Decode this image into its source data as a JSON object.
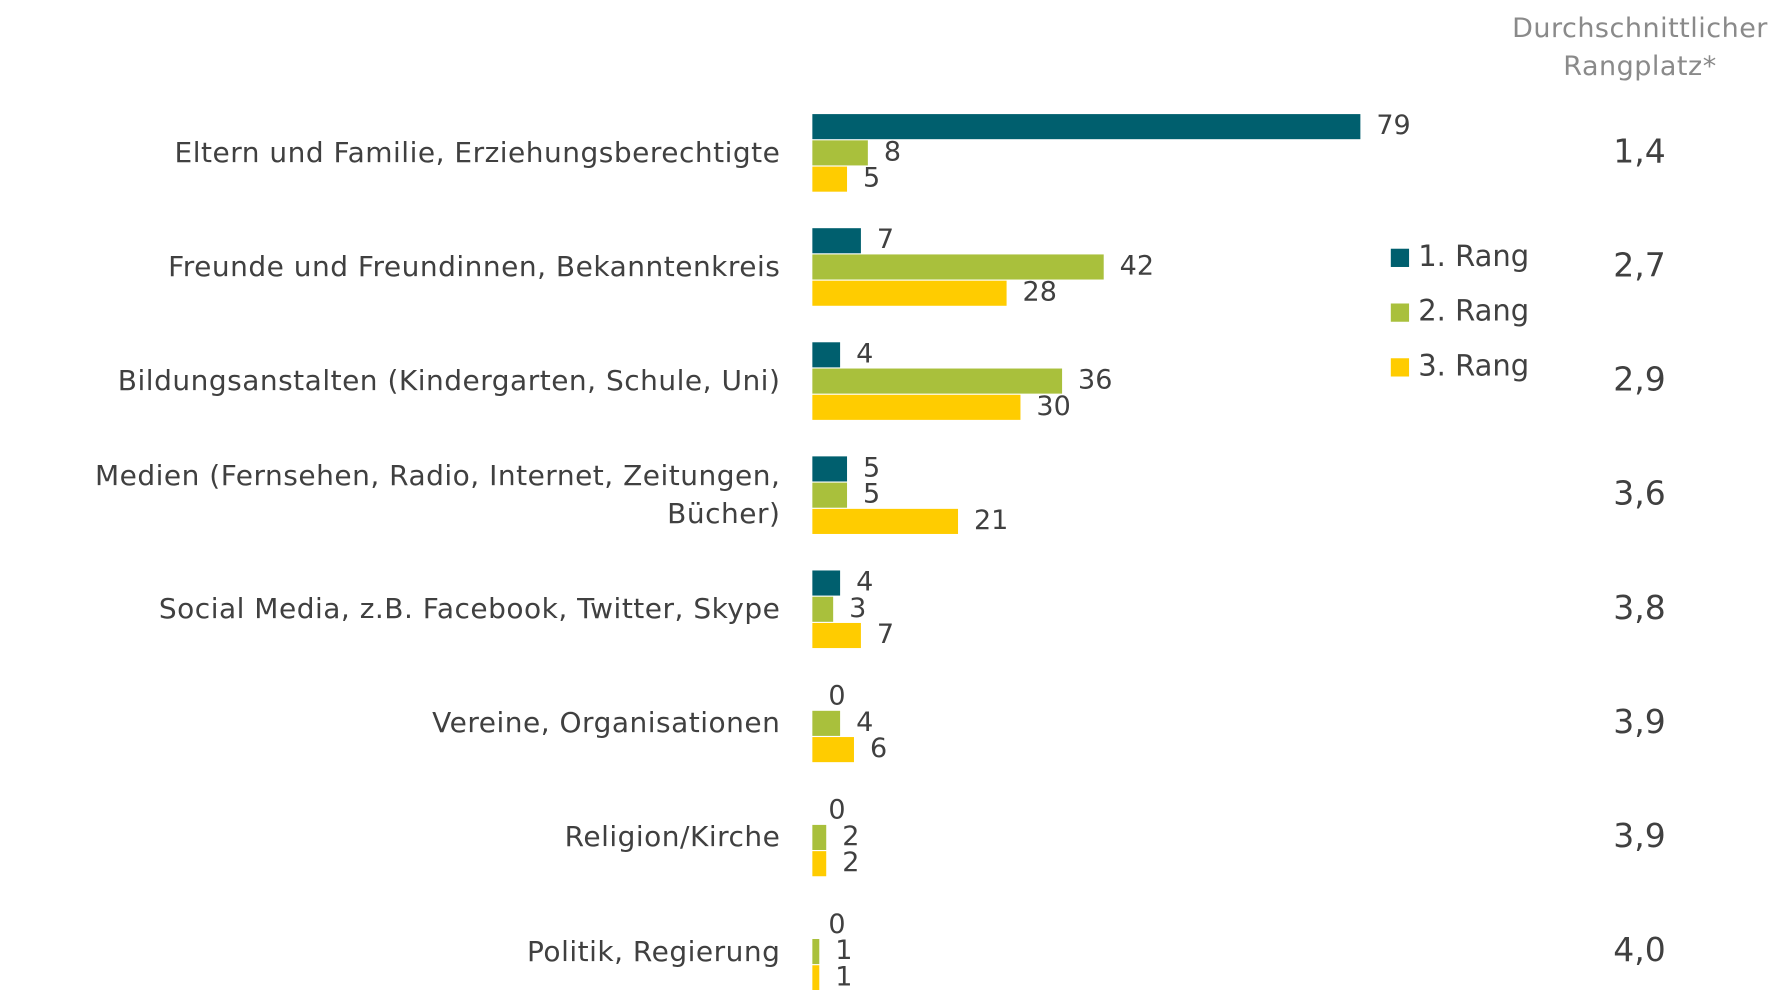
{
  "chart_data": {
    "type": "hbar",
    "categories": [
      "Eltern und Familie, Erziehungsberechtigte",
      "Freunde und Freundinnen, Bekanntenkreis",
      "Bildungsanstalten (Kindergarten, Schule, Uni)",
      "Medien (Fernsehen, Radio, Internet, Zeitungen, Bücher)",
      "Social Media, z.B. Facebook, Twitter, Skype",
      "Vereine, Organisationen",
      "Religion/Kirche",
      "Politik, Regierung"
    ],
    "series": [
      {
        "name": "1. Rang",
        "color": "#005f6e",
        "values": [
          79,
          7,
          4,
          5,
          4,
          0,
          0,
          0
        ]
      },
      {
        "name": "2. Rang",
        "color": "#a9c03c",
        "values": [
          8,
          42,
          36,
          5,
          3,
          4,
          2,
          1
        ]
      },
      {
        "name": "3. Rang",
        "color": "#ffcc00",
        "values": [
          5,
          28,
          30,
          21,
          7,
          6,
          2,
          1
        ]
      }
    ],
    "rank_column": {
      "title": "Durchschnittlicher Rangplatz*",
      "labels": [
        "1,4",
        "2,7",
        "2,9",
        "3,6",
        "3,8",
        "3,9",
        "3,9",
        "4,0"
      ]
    },
    "legend": "right"
  }
}
